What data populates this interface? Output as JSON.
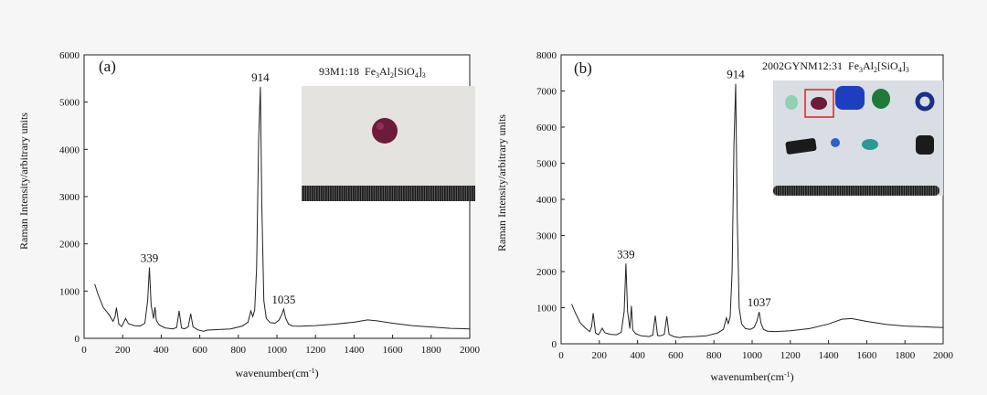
{
  "chart_data": [
    {
      "type": "line",
      "panel_label": "(a)",
      "sample_label": "93M1:18",
      "formula": "Fe3Al2[SiO4]3",
      "xlabel": "wavenumber(cm-1)",
      "ylabel": "Raman Intensity/arbitrary units",
      "xlim": [
        0,
        2000
      ],
      "ylim": [
        0,
        6000
      ],
      "xticks": [
        0,
        200,
        400,
        600,
        800,
        1000,
        1200,
        1400,
        1600,
        1800,
        2000
      ],
      "yticks": [
        0,
        1000,
        2000,
        3000,
        4000,
        5000,
        6000
      ],
      "grid": false,
      "series": [
        {
          "x": [
            55,
            75,
            100,
            130,
            150,
            160,
            168,
            180,
            195,
            205,
            215,
            230,
            260,
            290,
            315,
            330,
            339,
            348,
            360,
            368,
            375,
            390,
            420,
            460,
            480,
            493,
            505,
            520,
            540,
            553,
            565,
            590,
            620,
            640,
            700,
            760,
            820,
            850,
            865,
            875,
            885,
            895,
            905,
            914,
            922,
            932,
            945,
            965,
            990,
            1010,
            1025,
            1035,
            1045,
            1060,
            1080,
            1120,
            1200,
            1300,
            1400,
            1470,
            1520,
            1600,
            1700,
            1800,
            1900,
            2000
          ],
          "y": [
            1150,
            900,
            650,
            500,
            360,
            450,
            650,
            300,
            250,
            330,
            420,
            310,
            270,
            260,
            320,
            800,
            1500,
            700,
            420,
            660,
            380,
            280,
            220,
            200,
            230,
            580,
            220,
            200,
            240,
            520,
            240,
            180,
            150,
            175,
            185,
            200,
            260,
            340,
            580,
            460,
            600,
            1500,
            4200,
            5320,
            2800,
            800,
            420,
            330,
            320,
            380,
            500,
            620,
            430,
            300,
            260,
            255,
            270,
            300,
            340,
            390,
            370,
            320,
            270,
            240,
            210,
            200
          ]
        }
      ],
      "annotations": [
        {
          "text": "339",
          "x": 339,
          "y": 1500
        },
        {
          "text": "914",
          "x": 914,
          "y": 5320
        },
        {
          "text": "1035",
          "x": 1035,
          "y": 620
        }
      ]
    },
    {
      "type": "line",
      "panel_label": "(b)",
      "sample_label": "2002GYNM12:31",
      "formula": "Fe3Al2[SiO4]3",
      "xlabel": "wavenumber(cm-1)",
      "ylabel": "Raman Intensity/arbitrary units",
      "xlim": [
        0,
        2000
      ],
      "ylim": [
        0,
        8000
      ],
      "xticks": [
        0,
        200,
        400,
        600,
        800,
        1000,
        1200,
        1400,
        1600,
        1800,
        2000
      ],
      "yticks": [
        0,
        1000,
        2000,
        3000,
        4000,
        5000,
        6000,
        7000,
        8000
      ],
      "grid": false,
      "series": [
        {
          "x": [
            55,
            75,
            100,
            130,
            150,
            160,
            168,
            180,
            195,
            205,
            215,
            230,
            260,
            290,
            315,
            330,
            339,
            348,
            360,
            368,
            375,
            390,
            420,
            460,
            480,
            493,
            505,
            520,
            540,
            553,
            565,
            590,
            620,
            640,
            700,
            760,
            820,
            850,
            865,
            875,
            885,
            895,
            905,
            914,
            922,
            932,
            945,
            965,
            990,
            1010,
            1025,
            1037,
            1047,
            1060,
            1080,
            1120,
            1200,
            1300,
            1400,
            1470,
            1520,
            1600,
            1700,
            1800,
            1900,
            2000
          ],
          "y": [
            1100,
            850,
            580,
            420,
            340,
            480,
            850,
            300,
            250,
            330,
            430,
            300,
            260,
            250,
            320,
            900,
            2220,
            900,
            420,
            1050,
            380,
            280,
            220,
            200,
            240,
            780,
            230,
            220,
            260,
            760,
            260,
            200,
            170,
            190,
            200,
            220,
            300,
            400,
            720,
            560,
            750,
            2000,
            5500,
            7200,
            3500,
            1000,
            550,
            420,
            400,
            450,
            620,
            880,
            560,
            400,
            350,
            340,
            360,
            420,
            550,
            680,
            700,
            620,
            540,
            490,
            470,
            450
          ]
        }
      ],
      "annotations": [
        {
          "text": "339",
          "x": 339,
          "y": 2220
        },
        {
          "text": "914",
          "x": 914,
          "y": 7200
        },
        {
          "text": "1037",
          "x": 1037,
          "y": 880
        }
      ]
    }
  ],
  "colors": {
    "background": "#f6f6f6",
    "line": "#222222",
    "photo_background_a": "#e4e3df",
    "photo_background_b": "#d9dde4",
    "highlight_box": "#e02020"
  },
  "insets": [
    {
      "panel": "(a)",
      "content": [
        "garnet-bead",
        "ruler-scale"
      ],
      "colors": {
        "bead": "#6e1a3a"
      }
    },
    {
      "panel": "(b)",
      "content": [
        "mint-bead",
        "garnet-bead-highlighted",
        "blue-bead",
        "green-bead",
        "blue-ring-bead",
        "black-cylinder-bead",
        "small-blue-bead",
        "teal-bead",
        "black-bead",
        "ruler-scale"
      ],
      "colors": {
        "mint": "#8fd1b2",
        "garnet": "#6e1a3a",
        "blue": "#1d3fbf",
        "green": "#1f7a3a",
        "ring": "#1a2f8a",
        "black": "#1b1b1b",
        "teal": "#2a9a92"
      }
    }
  ]
}
